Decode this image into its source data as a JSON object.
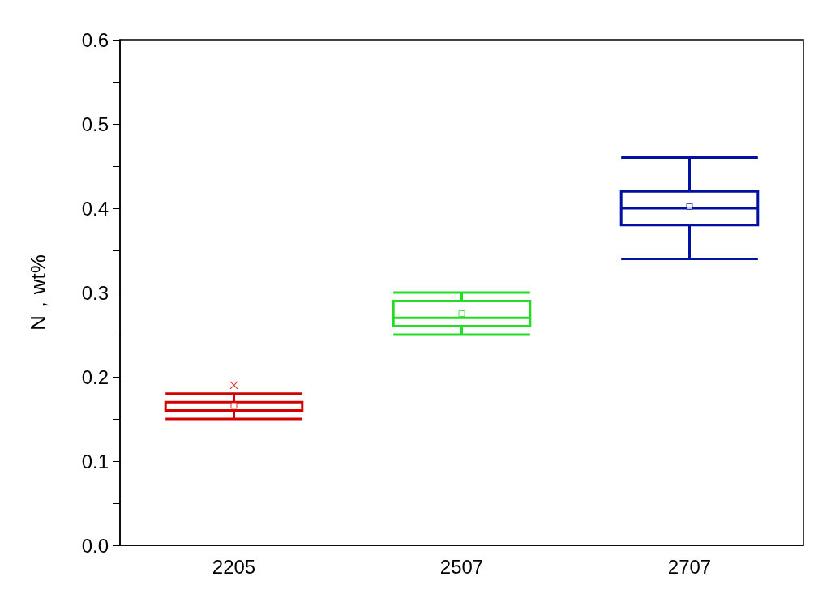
{
  "chart_data": {
    "type": "box",
    "ylabel": "N，wt%",
    "categories": [
      "2205",
      "2507",
      "2707"
    ],
    "colors": [
      "#d40000",
      "#22dd22",
      "#0010a0"
    ],
    "boxes": [
      {
        "low": 0.15,
        "q1": 0.16,
        "median": 0.16,
        "q3": 0.17,
        "high": 0.18,
        "mean": 0.166,
        "outliers": [
          0.19
        ]
      },
      {
        "low": 0.25,
        "q1": 0.26,
        "median": 0.27,
        "q3": 0.29,
        "high": 0.3,
        "mean": 0.275
      },
      {
        "low": 0.34,
        "q1": 0.38,
        "median": 0.4,
        "q3": 0.42,
        "high": 0.46,
        "mean": 0.402
      }
    ],
    "ylim": [
      0,
      0.6
    ],
    "yticks": [
      {
        "value": 0,
        "label": "0.0"
      },
      {
        "value": 0.05,
        "label": null
      },
      {
        "value": 0.1,
        "label": "0.1"
      },
      {
        "value": 0.15,
        "label": null
      },
      {
        "value": 0.2,
        "label": "0.2"
      },
      {
        "value": 0.25,
        "label": null
      },
      {
        "value": 0.3,
        "label": "0.3"
      },
      {
        "value": 0.35,
        "label": null
      },
      {
        "value": 0.4,
        "label": "0.4"
      },
      {
        "value": 0.45,
        "label": null
      },
      {
        "value": 0.5,
        "label": "0.5"
      },
      {
        "value": 0.55,
        "label": null
      },
      {
        "value": 0.6,
        "label": "0.6"
      }
    ],
    "grid": false
  }
}
